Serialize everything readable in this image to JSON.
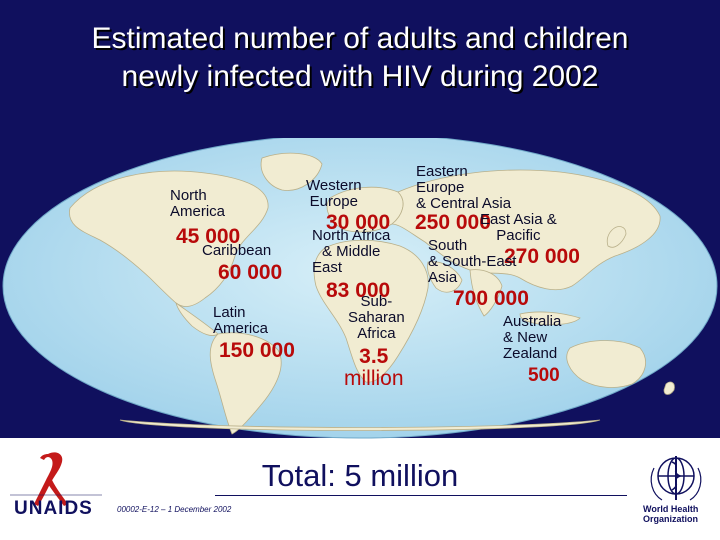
{
  "title": {
    "line1": "Estimated number of adults and children",
    "line2": "newly infected with HIV during 2002"
  },
  "regions": [
    {
      "name": "North America",
      "name_lines": [
        "North",
        "America"
      ],
      "value": "45 000"
    },
    {
      "name": "Caribbean",
      "name_lines": [
        "Caribbean"
      ],
      "value": "60 000"
    },
    {
      "name": "Latin America",
      "name_lines": [
        "Latin",
        "America"
      ],
      "value": "150 000"
    },
    {
      "name": "Western Europe",
      "name_lines": [
        "Western",
        "Europe"
      ],
      "value": "30 000"
    },
    {
      "name": "North Africa & Middle East",
      "name_lines": [
        "North Africa",
        "& Middle",
        "East"
      ],
      "value": "83 000"
    },
    {
      "name": "Sub-Saharan Africa",
      "name_lines": [
        "Sub-",
        "Saharan",
        "Africa"
      ],
      "value_lines": [
        "3.5",
        "million"
      ]
    },
    {
      "name": "Eastern Europe & Central Asia",
      "name_lines": [
        "Eastern",
        "Europe",
        "& Central Asia"
      ],
      "value": "250 000"
    },
    {
      "name": "East Asia & Pacific",
      "name_lines": [
        "East Asia &",
        "Pacific"
      ],
      "value": "270 000"
    },
    {
      "name": "South & South-East Asia",
      "name_lines": [
        "South",
        "& South-East",
        "Asia"
      ],
      "value": "700 000"
    },
    {
      "name": "Australia & New Zealand",
      "name_lines": [
        "Australia",
        "& New",
        "Zealand"
      ],
      "value": "500"
    }
  ],
  "total": "Total: 5 million",
  "footer": {
    "code": "00002-E-12 – 1 December 2002",
    "unaids_name": "UNAIDS",
    "who_lines": [
      "World Health",
      "Organization"
    ]
  },
  "colors": {
    "banner": "#10105e",
    "ocean": "#b9dff0",
    "land": "#f1ecd2",
    "value_red": "#b80a0a"
  }
}
